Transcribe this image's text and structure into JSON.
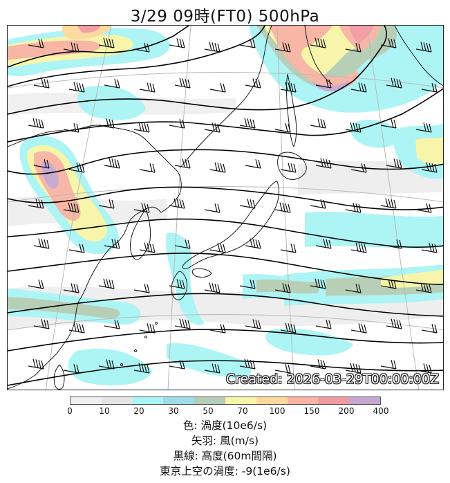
{
  "title": {
    "datetime": "3/29",
    "time": "09時(FT0)",
    "level": "500hPa"
  },
  "map": {
    "created_label": "Created: 2026-03-29T00:00:00Z",
    "land_color": "#ffffff",
    "coast_color": "#1a1a1a",
    "contour_color": "#000000",
    "wind_barb_color": "#111111",
    "graticule_color": "#b8b8b8"
  },
  "colorbar": {
    "ticks": [
      "0",
      "10",
      "20",
      "30",
      "50",
      "70",
      "100",
      "150",
      "200",
      "400"
    ],
    "colors": [
      "#f0f0f0",
      "#e4e4e4",
      "#a9f4f4",
      "#9edcea",
      "#b4cdb4",
      "#f7f5a6",
      "#fcd99b",
      "#f8b3a2",
      "#f29aa2",
      "#c5a7cf"
    ]
  },
  "legend": {
    "color": "色: 渦度(10e6/s)",
    "barb": "矢羽: 風(m/s)",
    "line": "黒線: 高度(60m間隔)",
    "tokyo": "東京上空の渦度: -9(1e6/s)"
  }
}
